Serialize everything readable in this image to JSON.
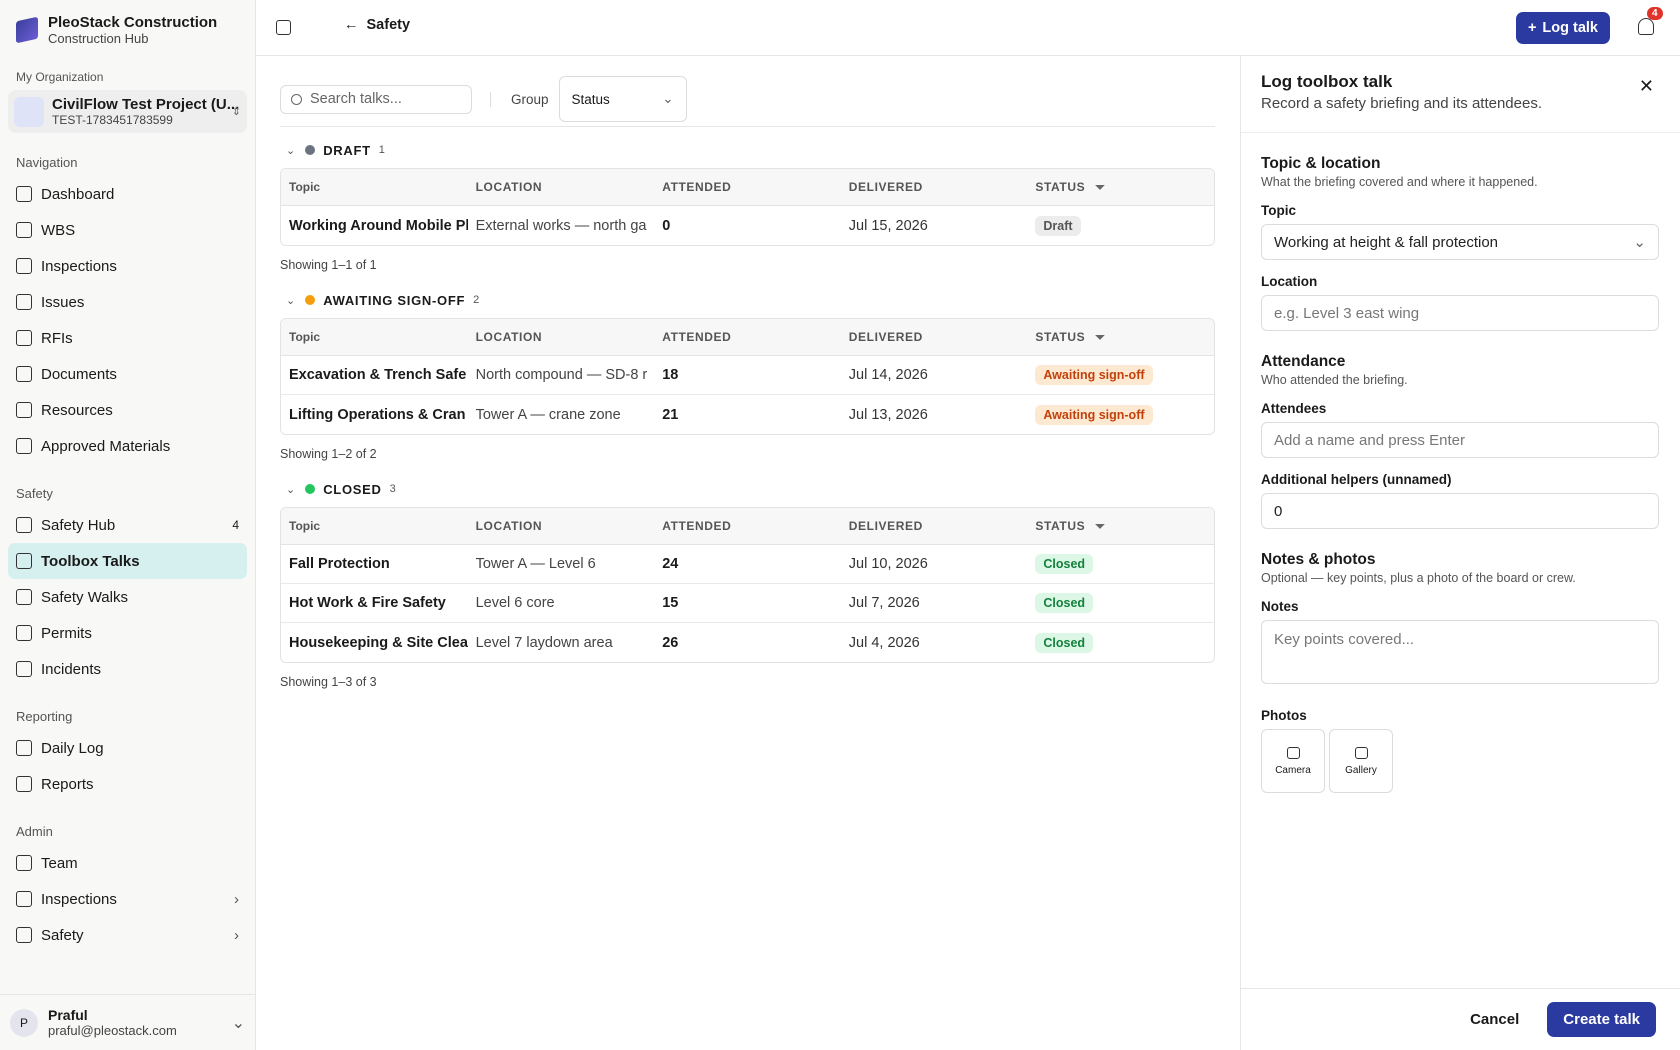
{
  "sidebar": {
    "brand": {
      "name": "PleoStack Construction",
      "subtitle": "Construction Hub"
    },
    "org": "My Organization",
    "project": {
      "name": "CivilFlow Test Project (U...",
      "code": "TEST-1783451783599"
    },
    "sections": [
      {
        "title": "Navigation",
        "items": [
          {
            "label": "Dashboard"
          },
          {
            "label": "WBS"
          },
          {
            "label": "Inspections"
          },
          {
            "label": "Issues"
          },
          {
            "label": "RFIs"
          },
          {
            "label": "Documents"
          },
          {
            "label": "Resources"
          },
          {
            "label": "Approved Materials"
          }
        ]
      },
      {
        "title": "Safety",
        "items": [
          {
            "label": "Safety Hub",
            "badge": 4
          },
          {
            "label": "Toolbox Talks",
            "active": true
          },
          {
            "label": "Safety Walks"
          },
          {
            "label": "Permits"
          },
          {
            "label": "Incidents"
          }
        ]
      },
      {
        "title": "Reporting",
        "items": [
          {
            "label": "Daily Log"
          },
          {
            "label": "Reports"
          }
        ]
      },
      {
        "title": "Admin",
        "items": [
          {
            "label": "Team"
          },
          {
            "label": "Inspections",
            "expandable": true
          },
          {
            "label": "Safety",
            "expandable": true
          }
        ]
      }
    ],
    "user": {
      "initial": "P",
      "name": "Praful",
      "email": "praful@pleostack.com"
    }
  },
  "header": {
    "back": "Safety",
    "log_button": "Log talk",
    "notifications": 4
  },
  "toolbar": {
    "search_placeholder": "Search talks...",
    "group_label": "Group",
    "group_value": "Status"
  },
  "columns": [
    "Topic",
    "LOCATION",
    "ATTENDED",
    "DELIVERED",
    "STATUS"
  ],
  "groups": [
    {
      "name": "DRAFT",
      "count": 1,
      "dot": "#6b7280",
      "rows": [
        {
          "topic": "Working Around Mobile Pl",
          "location": "External works — north ga",
          "attended": 0,
          "delivered": "Jul 15, 2026",
          "status": "Draft",
          "tone": "gray"
        }
      ],
      "footer": "Showing 1–1 of 1"
    },
    {
      "name": "AWAITING SIGN-OFF",
      "count": 2,
      "dot": "#f59e0b",
      "rows": [
        {
          "topic": "Excavation & Trench Safe",
          "location": "North compound — SD-8 r",
          "attended": 18,
          "delivered": "Jul 14, 2026",
          "status": "Awaiting sign-off",
          "tone": "amber"
        },
        {
          "topic": "Lifting Operations & Cran",
          "location": "Tower A — crane zone",
          "attended": 21,
          "delivered": "Jul 13, 2026",
          "status": "Awaiting sign-off",
          "tone": "amber"
        }
      ],
      "footer": "Showing 1–2 of 2"
    },
    {
      "name": "CLOSED",
      "count": 3,
      "dot": "#22c55e",
      "rows": [
        {
          "topic": "Fall Protection",
          "location": "Tower A — Level 6",
          "attended": 24,
          "delivered": "Jul 10, 2026",
          "status": "Closed",
          "tone": "green"
        },
        {
          "topic": "Hot Work & Fire Safety",
          "location": "Level 6 core",
          "attended": 15,
          "delivered": "Jul 7, 2026",
          "status": "Closed",
          "tone": "green"
        },
        {
          "topic": "Housekeeping & Site Clea",
          "location": "Level 7 laydown area",
          "attended": 26,
          "delivered": "Jul 4, 2026",
          "status": "Closed",
          "tone": "green"
        }
      ],
      "footer": "Showing 1–3 of 3"
    }
  ],
  "panel": {
    "title": "Log toolbox talk",
    "subtitle": "Record a safety briefing and its attendees.",
    "sections": [
      {
        "title": "Topic & location",
        "hint": "What the briefing covered and where it happened.",
        "fields": [
          {
            "label": "Topic",
            "kind": "select",
            "value": "Working at height & fall protection"
          },
          {
            "label": "Location",
            "kind": "input",
            "placeholder": "e.g. Level 3 east wing"
          }
        ]
      },
      {
        "title": "Attendance",
        "hint": "Who attended the briefing.",
        "fields": [
          {
            "label": "Attendees",
            "kind": "input",
            "placeholder": "Add a name and press Enter"
          },
          {
            "label": "Additional helpers (unnamed)",
            "kind": "number",
            "value": 0
          }
        ]
      },
      {
        "title": "Notes & photos",
        "hint": "Optional — key points, plus a photo of the board or crew.",
        "fields": [
          {
            "label": "Notes",
            "kind": "textarea",
            "placeholder": "Key points covered..."
          }
        ]
      }
    ],
    "photos_label": "Photos",
    "photo_buttons": [
      "Camera",
      "Gallery"
    ],
    "cancel": "Cancel",
    "submit": "Create talk"
  }
}
